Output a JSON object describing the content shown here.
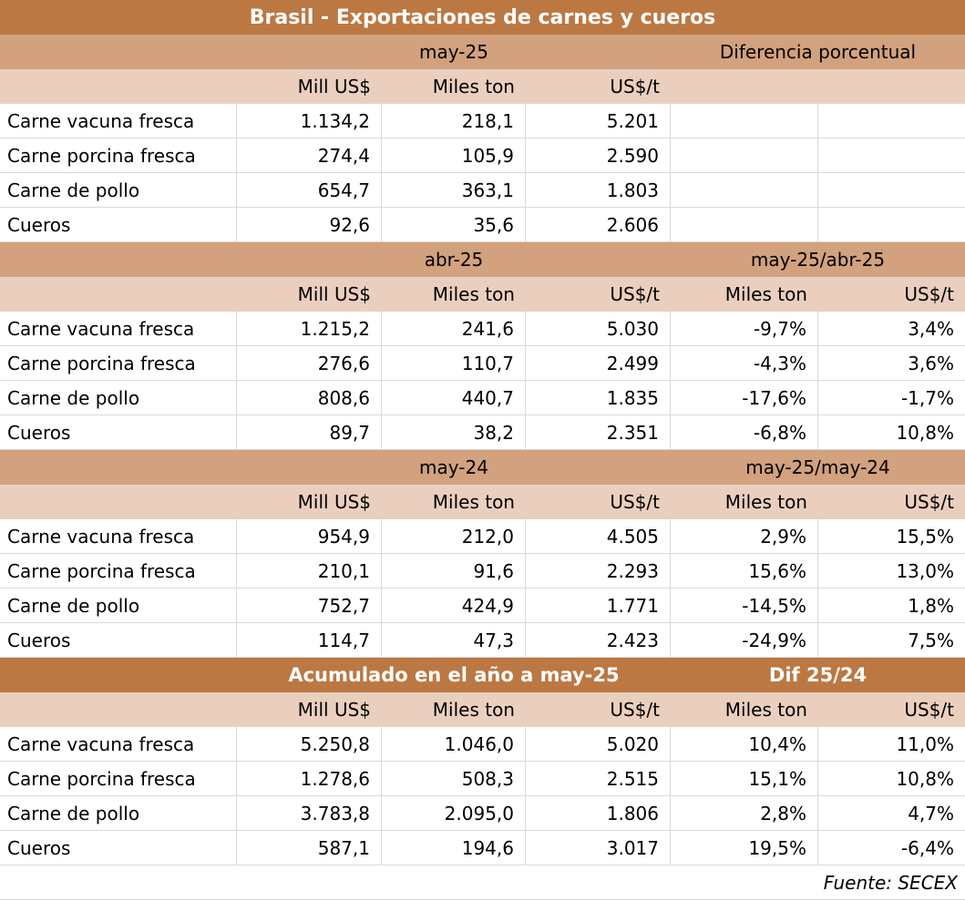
{
  "title": "Brasil - Exportaciones de carnes y cueros",
  "footer": {
    "source": "Fuente: SECEX"
  },
  "colors": {
    "band_dark": "#bc7843",
    "band_tan": "#d2a17e",
    "band_peach": "#eacfbf",
    "grid_line": "#d9d9d9",
    "title_text": "#ffffff",
    "body_text": "#000000"
  },
  "sections": [
    {
      "period": "may-25",
      "diff": "Diferencia porcentual",
      "band": "tan",
      "col_headers": [
        "Mill US$",
        "Miles ton",
        "US$/t",
        "",
        ""
      ],
      "rows": [
        {
          "label": "Carne vacuna fresca",
          "values": [
            "1.134,2",
            "218,1",
            "5.201",
            "",
            ""
          ]
        },
        {
          "label": "Carne porcina fresca",
          "values": [
            "274,4",
            "105,9",
            "2.590",
            "",
            ""
          ]
        },
        {
          "label": "Carne de pollo",
          "values": [
            "654,7",
            "363,1",
            "1.803",
            "",
            ""
          ]
        },
        {
          "label": "Cueros",
          "values": [
            "92,6",
            "35,6",
            "2.606",
            "",
            ""
          ]
        }
      ]
    },
    {
      "period": "abr-25",
      "diff": "may-25/abr-25",
      "band": "tan",
      "col_headers": [
        "Mill US$",
        "Miles ton",
        "US$/t",
        "Miles ton",
        "US$/t"
      ],
      "rows": [
        {
          "label": "Carne vacuna fresca",
          "values": [
            "1.215,2",
            "241,6",
            "5.030",
            "-9,7%",
            "3,4%"
          ]
        },
        {
          "label": "Carne porcina fresca",
          "values": [
            "276,6",
            "110,7",
            "2.499",
            "-4,3%",
            "3,6%"
          ]
        },
        {
          "label": "Carne de pollo",
          "values": [
            "808,6",
            "440,7",
            "1.835",
            "-17,6%",
            "-1,7%"
          ]
        },
        {
          "label": "Cueros",
          "values": [
            "89,7",
            "38,2",
            "2.351",
            "-6,8%",
            "10,8%"
          ]
        }
      ]
    },
    {
      "period": "may-24",
      "diff": "may-25/may-24",
      "band": "tan",
      "col_headers": [
        "Mill US$",
        "Miles ton",
        "US$/t",
        "Miles ton",
        "US$/t"
      ],
      "rows": [
        {
          "label": "Carne vacuna fresca",
          "values": [
            "954,9",
            "212,0",
            "4.505",
            "2,9%",
            "15,5%"
          ]
        },
        {
          "label": "Carne porcina fresca",
          "values": [
            "210,1",
            "91,6",
            "2.293",
            "15,6%",
            "13,0%"
          ]
        },
        {
          "label": "Carne de pollo",
          "values": [
            "752,7",
            "424,9",
            "1.771",
            "-14,5%",
            "1,8%"
          ]
        },
        {
          "label": "Cueros",
          "values": [
            "114,7",
            "47,3",
            "2.423",
            "-24,9%",
            "7,5%"
          ]
        }
      ]
    },
    {
      "period": "Acumulado en el año a may-25",
      "diff": "Dif 25/24",
      "band": "dark",
      "col_headers": [
        "Mill US$",
        "Miles ton",
        "US$/t",
        "Miles ton",
        "US$/t"
      ],
      "rows": [
        {
          "label": "Carne vacuna fresca",
          "values": [
            "5.250,8",
            "1.046,0",
            "5.020",
            "10,4%",
            "11,0%"
          ]
        },
        {
          "label": "Carne porcina fresca",
          "values": [
            "1.278,6",
            "508,3",
            "2.515",
            "15,1%",
            "10,8%"
          ]
        },
        {
          "label": "Carne de pollo",
          "values": [
            "3.783,8",
            "2.095,0",
            "1.806",
            "2,8%",
            "4,7%"
          ]
        },
        {
          "label": "Cueros",
          "values": [
            "587,1",
            "194,6",
            "3.017",
            "19,5%",
            "-6,4%"
          ]
        }
      ]
    }
  ]
}
